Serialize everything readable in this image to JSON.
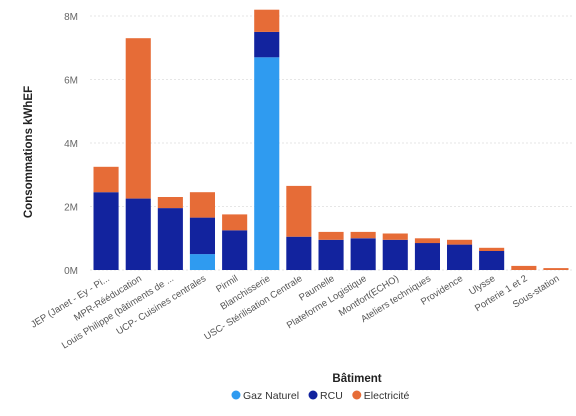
{
  "chart_data": {
    "type": "bar",
    "stacked": true,
    "xlabel": "Bâtiment",
    "ylabel": "Consommations kWhEF",
    "y_tick_labels": [
      "0M",
      "2M",
      "4M",
      "6M",
      "8M"
    ],
    "ylim": [
      0,
      8000000
    ],
    "grid": true,
    "legend_position": "bottom",
    "categories": [
      "JEP (Janet - Ey - Pi...",
      "MPR-Rééducation",
      "Louis Philippe (bâtiments de ...",
      "UCP- Cuisines centrales",
      "Pirmil",
      "Blanchisserie",
      "USC- Stérilisation Centrale",
      "Paumelle",
      "Plateforme Logistique",
      "Montfort(ECHO)",
      "Ateliers techniques",
      "Providence",
      "Ulysse",
      "Porterie 1 et 2",
      "Sous-station"
    ],
    "series": [
      {
        "name": "Gaz Naturel",
        "color": "#2f9bf0",
        "values": [
          0,
          0,
          0,
          500000,
          0,
          6700000,
          0,
          0,
          0,
          0,
          0,
          0,
          0,
          0,
          0
        ]
      },
      {
        "name": "RCU",
        "color": "#12239e",
        "values": [
          2450000,
          2250000,
          1950000,
          1150000,
          1250000,
          800000,
          1050000,
          950000,
          1000000,
          950000,
          850000,
          800000,
          600000,
          0,
          0
        ]
      },
      {
        "name": "Electricité",
        "color": "#e66c37",
        "values": [
          800000,
          5050000,
          350000,
          800000,
          500000,
          700000,
          1600000,
          250000,
          200000,
          200000,
          150000,
          150000,
          100000,
          130000,
          60000
        ]
      }
    ]
  }
}
